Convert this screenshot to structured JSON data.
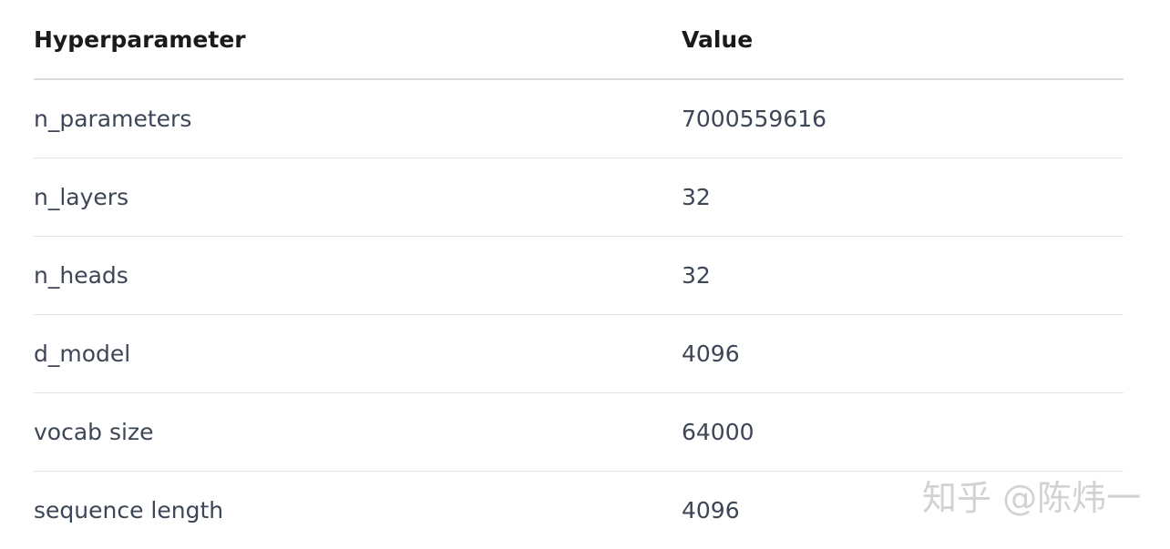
{
  "table": {
    "headers": [
      "Hyperparameter",
      "Value"
    ],
    "rows": [
      {
        "name": "n_parameters",
        "value": "7000559616"
      },
      {
        "name": "n_layers",
        "value": "32"
      },
      {
        "name": "n_heads",
        "value": "32"
      },
      {
        "name": "d_model",
        "value": "4096"
      },
      {
        "name": "vocab size",
        "value": "64000"
      },
      {
        "name": "sequence length",
        "value": "4096"
      }
    ]
  },
  "watermark": {
    "text": "知乎 @陈炜一"
  }
}
